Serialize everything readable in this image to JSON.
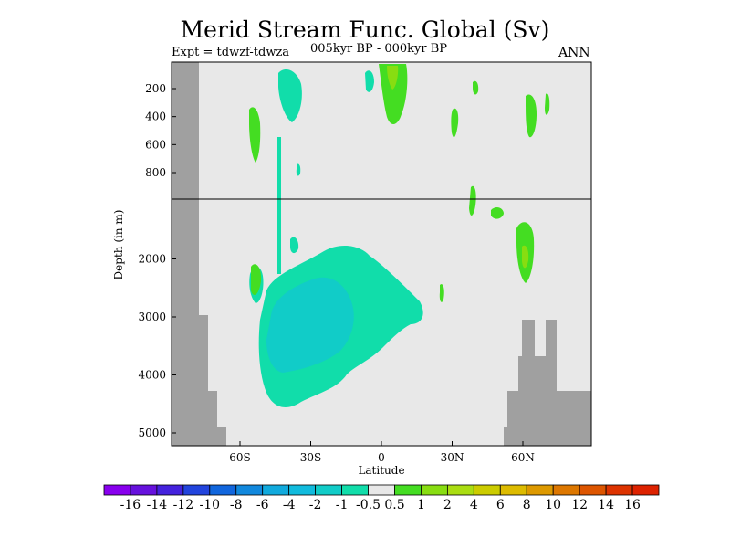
{
  "header": {
    "title": "Merid Stream Func. Global (Sv)",
    "experiment": "Expt = tdwzf-tdwza",
    "period": "005kyr BP - 000kyr BP",
    "season": "ANN"
  },
  "chart_data": {
    "type": "heatmap",
    "title": "Merid Stream Func. Global (Sv)",
    "xlabel": "Latitude",
    "ylabel": "Depth (in m)",
    "x_ticks": [
      "60S",
      "30S",
      "0",
      "30N",
      "60N"
    ],
    "x_tick_values": [
      -60,
      -30,
      0,
      30,
      60
    ],
    "xlim": [
      -90,
      90
    ],
    "y_ticks_upper": [
      "200",
      "400",
      "600",
      "800"
    ],
    "y_tick_values_upper": [
      200,
      400,
      600,
      800
    ],
    "y_ticks_lower": [
      "2000",
      "3000",
      "4000",
      "5000"
    ],
    "y_tick_values_lower": [
      2000,
      3000,
      4000,
      5000
    ],
    "ylim": [
      0,
      5200
    ],
    "colorbar": {
      "labels": [
        "-16",
        "-14",
        "-12",
        "-10",
        "-8",
        "-6",
        "-4",
        "-2",
        "-1",
        "-0.5",
        "0.5",
        "1",
        "2",
        "4",
        "6",
        "8",
        "10",
        "12",
        "14",
        "16"
      ],
      "colors": [
        "#8800ee",
        "#6611dd",
        "#4422dd",
        "#2244dd",
        "#1166dd",
        "#1188dd",
        "#11aadd",
        "#11bbdd",
        "#11ccc8",
        "#11ddaa",
        "#e8e8e8",
        "#44dd22",
        "#88dd11",
        "#aadd11",
        "#cccc00",
        "#ddbb00",
        "#dd9900",
        "#dd7700",
        "#dd5500",
        "#dd3300",
        "#dd2200"
      ]
    },
    "colors": {
      "background": "#e8e8e8",
      "land": "#a0a0a0",
      "neg_weak": "#11ddaa",
      "neg_mid": "#11ccc8",
      "pos_weak": "#44dd22",
      "pos_mid": "#88dd11"
    }
  }
}
